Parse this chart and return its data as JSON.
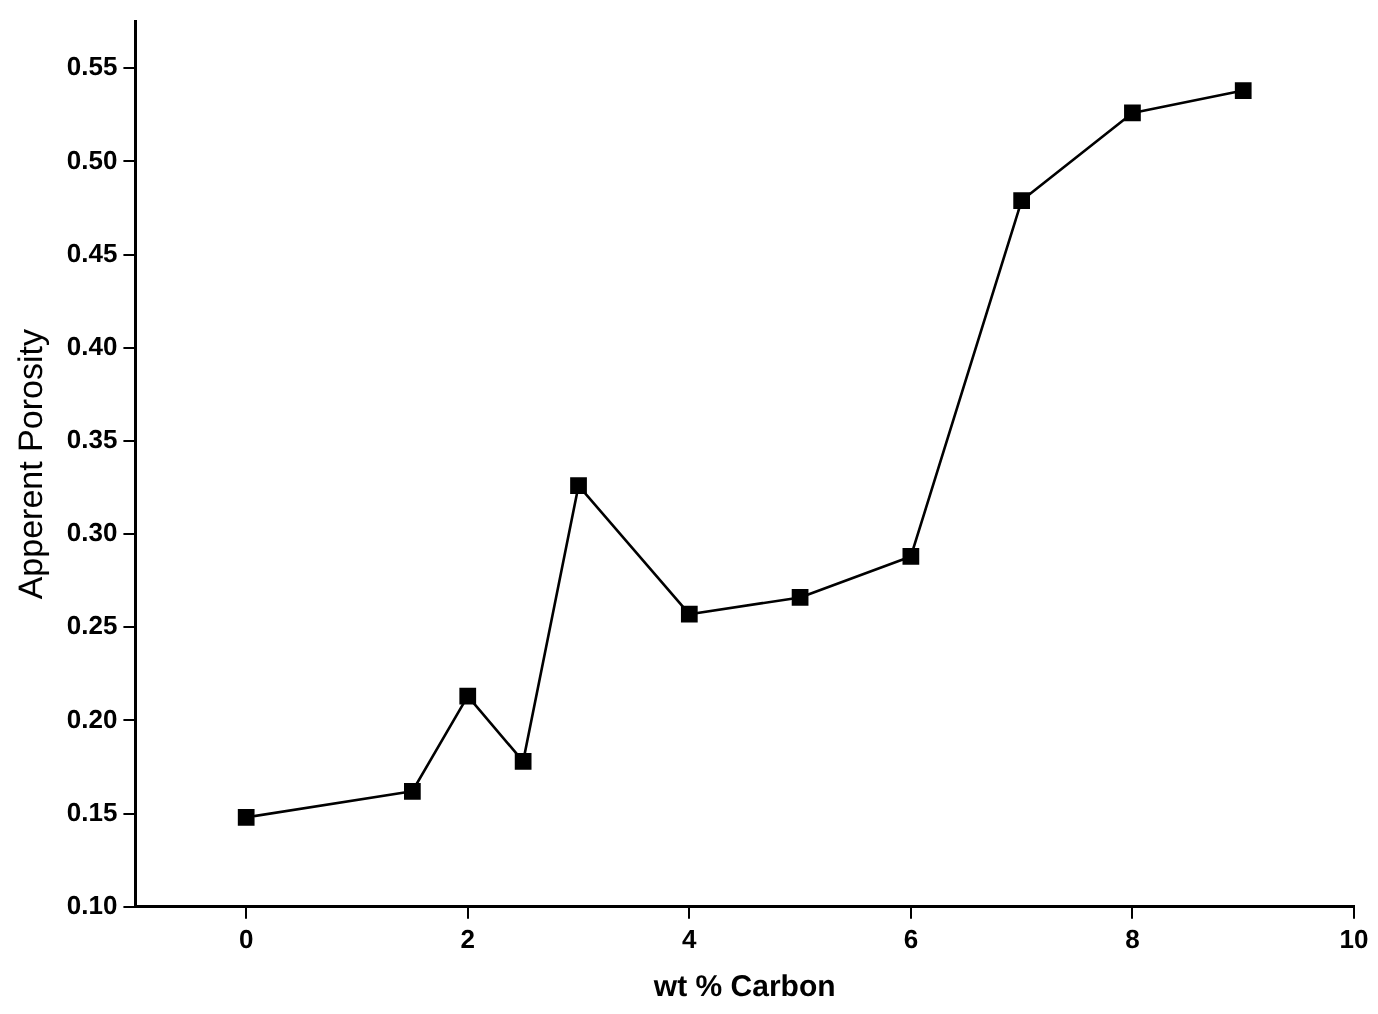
{
  "chart_data": {
    "type": "line",
    "xlabel": "wt % Carbon",
    "ylabel": "Apperent Porosity",
    "x": [
      0,
      1.5,
      2,
      2.5,
      3,
      4,
      5,
      6,
      7,
      8,
      9
    ],
    "series": [
      {
        "color": "#000000",
        "values": [
          0.148,
          0.162,
          0.213,
          0.178,
          0.326,
          0.257,
          0.266,
          0.288,
          0.479,
          0.526,
          0.538
        ]
      }
    ],
    "xlim": [
      -1,
      10
    ],
    "xticks": [
      0,
      2,
      4,
      6,
      8,
      10
    ],
    "ylim": [
      0.1,
      0.575
    ],
    "yticks": [
      {
        "value": 0.1,
        "label": "0.10"
      },
      {
        "value": 0.15,
        "label": "0.15"
      },
      {
        "value": 0.2,
        "label": "0.20"
      },
      {
        "value": 0.25,
        "label": "0.25"
      },
      {
        "value": 0.3,
        "label": "0.30"
      },
      {
        "value": 0.35,
        "label": "0.35"
      },
      {
        "value": 0.4,
        "label": "0.40"
      },
      {
        "value": 0.45,
        "label": "0.45"
      },
      {
        "value": 0.5,
        "label": "0.50"
      },
      {
        "value": 0.55,
        "label": "0.55"
      }
    ],
    "grid": false,
    "legend": false,
    "marker": "square",
    "line_style": "solid"
  }
}
